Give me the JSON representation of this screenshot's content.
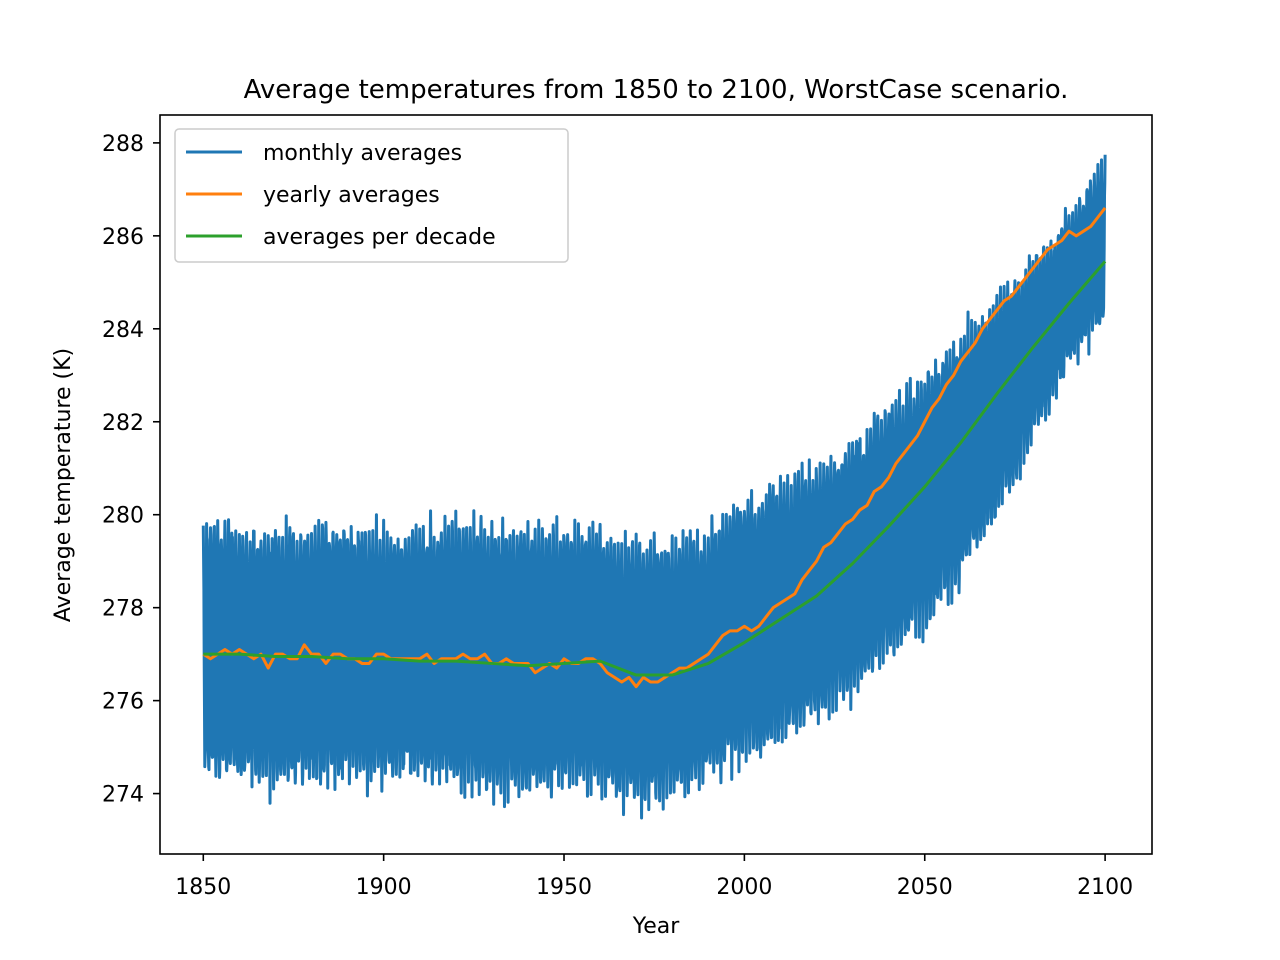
{
  "chart_data": {
    "type": "line",
    "title": "Average temperatures from 1850 to 2100, WorstCase scenario.",
    "xlabel": "Year",
    "ylabel": "Average temperature (K)",
    "xlim": [
      1838,
      2113
    ],
    "ylim": [
      272.7,
      288.6
    ],
    "xticks": [
      1850,
      1900,
      1950,
      2000,
      2050,
      2100
    ],
    "yticks": [
      274,
      276,
      278,
      280,
      282,
      284,
      286,
      288
    ],
    "grid": false,
    "legend_position": "upper-left",
    "colors": {
      "monthly": "#1f77b4",
      "yearly": "#ff7f0e",
      "decade": "#2ca02c"
    },
    "series": [
      {
        "name": "monthly averages",
        "kind": "seasonal-band",
        "x": [
          1850,
          1860,
          1870,
          1880,
          1890,
          1900,
          1910,
          1920,
          1930,
          1940,
          1950,
          1960,
          1970,
          1980,
          1990,
          2000,
          2010,
          2020,
          2030,
          2040,
          2050,
          2060,
          2070,
          2080,
          2090,
          2100
        ],
        "high": [
          280.0,
          279.9,
          279.8,
          279.9,
          280.0,
          279.8,
          279.9,
          280.1,
          279.9,
          279.8,
          279.9,
          279.8,
          279.6,
          279.6,
          279.8,
          280.5,
          280.9,
          281.2,
          281.7,
          282.5,
          283.2,
          284.0,
          284.8,
          285.6,
          286.5,
          287.8
        ],
        "low": [
          274.2,
          274.2,
          274.0,
          274.1,
          274.1,
          274.1,
          274.2,
          274.0,
          273.9,
          273.9,
          274.1,
          274.0,
          273.6,
          273.8,
          274.2,
          274.6,
          275.0,
          275.5,
          276.0,
          276.7,
          277.5,
          278.5,
          279.8,
          281.5,
          283.2,
          284.0
        ]
      },
      {
        "name": "yearly averages",
        "x": [
          1850,
          1852,
          1854,
          1856,
          1858,
          1860,
          1862,
          1864,
          1866,
          1868,
          1870,
          1872,
          1874,
          1876,
          1878,
          1880,
          1882,
          1884,
          1886,
          1888,
          1890,
          1892,
          1894,
          1896,
          1898,
          1900,
          1902,
          1904,
          1906,
          1908,
          1910,
          1912,
          1914,
          1916,
          1918,
          1920,
          1922,
          1924,
          1926,
          1928,
          1930,
          1932,
          1934,
          1936,
          1938,
          1940,
          1942,
          1944,
          1946,
          1948,
          1950,
          1952,
          1954,
          1956,
          1958,
          1960,
          1962,
          1964,
          1966,
          1968,
          1970,
          1972,
          1974,
          1976,
          1978,
          1980,
          1982,
          1984,
          1986,
          1988,
          1990,
          1992,
          1994,
          1996,
          1998,
          2000,
          2002,
          2004,
          2006,
          2008,
          2010,
          2012,
          2014,
          2016,
          2018,
          2020,
          2022,
          2024,
          2026,
          2028,
          2030,
          2032,
          2034,
          2036,
          2038,
          2040,
          2042,
          2044,
          2046,
          2048,
          2050,
          2052,
          2054,
          2056,
          2058,
          2060,
          2062,
          2064,
          2066,
          2068,
          2070,
          2072,
          2074,
          2076,
          2078,
          2080,
          2082,
          2084,
          2086,
          2088,
          2090,
          2092,
          2094,
          2096,
          2098,
          2100
        ],
        "values": [
          277.0,
          276.9,
          277.0,
          277.1,
          277.0,
          277.1,
          277.0,
          276.9,
          277.0,
          276.7,
          277.0,
          277.0,
          276.9,
          276.9,
          277.2,
          277.0,
          277.0,
          276.8,
          277.0,
          277.0,
          276.9,
          276.9,
          276.8,
          276.8,
          277.0,
          277.0,
          276.9,
          276.9,
          276.9,
          276.9,
          276.9,
          277.0,
          276.8,
          276.9,
          276.9,
          276.9,
          277.0,
          276.9,
          276.9,
          277.0,
          276.8,
          276.8,
          276.9,
          276.8,
          276.8,
          276.8,
          276.6,
          276.7,
          276.8,
          276.7,
          276.9,
          276.8,
          276.8,
          276.9,
          276.9,
          276.8,
          276.6,
          276.5,
          276.4,
          276.5,
          276.3,
          276.5,
          276.4,
          276.4,
          276.5,
          276.6,
          276.7,
          276.7,
          276.8,
          276.9,
          277.0,
          277.2,
          277.4,
          277.5,
          277.5,
          277.6,
          277.5,
          277.6,
          277.8,
          278.0,
          278.1,
          278.2,
          278.3,
          278.6,
          278.8,
          279.0,
          279.3,
          279.4,
          279.6,
          279.8,
          279.9,
          280.1,
          280.2,
          280.5,
          280.6,
          280.8,
          281.1,
          281.3,
          281.5,
          281.7,
          282.0,
          282.3,
          282.5,
          282.8,
          283.0,
          283.3,
          283.5,
          283.7,
          284.0,
          284.2,
          284.4,
          284.6,
          284.7,
          284.9,
          285.1,
          285.3,
          285.5,
          285.7,
          285.8,
          285.9,
          286.1,
          286.0,
          286.1,
          286.2,
          286.4,
          286.6
        ]
      },
      {
        "name": "averages per decade",
        "x": [
          1850,
          1860,
          1870,
          1880,
          1890,
          1900,
          1910,
          1920,
          1930,
          1940,
          1950,
          1960,
          1970,
          1980,
          1990,
          2000,
          2010,
          2020,
          2030,
          2040,
          2050,
          2060,
          2070,
          2080,
          2090,
          2100
        ],
        "values": [
          277.0,
          277.0,
          276.95,
          276.95,
          276.9,
          276.9,
          276.85,
          276.85,
          276.8,
          276.75,
          276.8,
          276.85,
          276.55,
          276.55,
          276.8,
          277.25,
          277.75,
          278.25,
          278.95,
          279.75,
          280.6,
          281.55,
          282.6,
          283.6,
          284.55,
          285.45
        ]
      }
    ]
  }
}
